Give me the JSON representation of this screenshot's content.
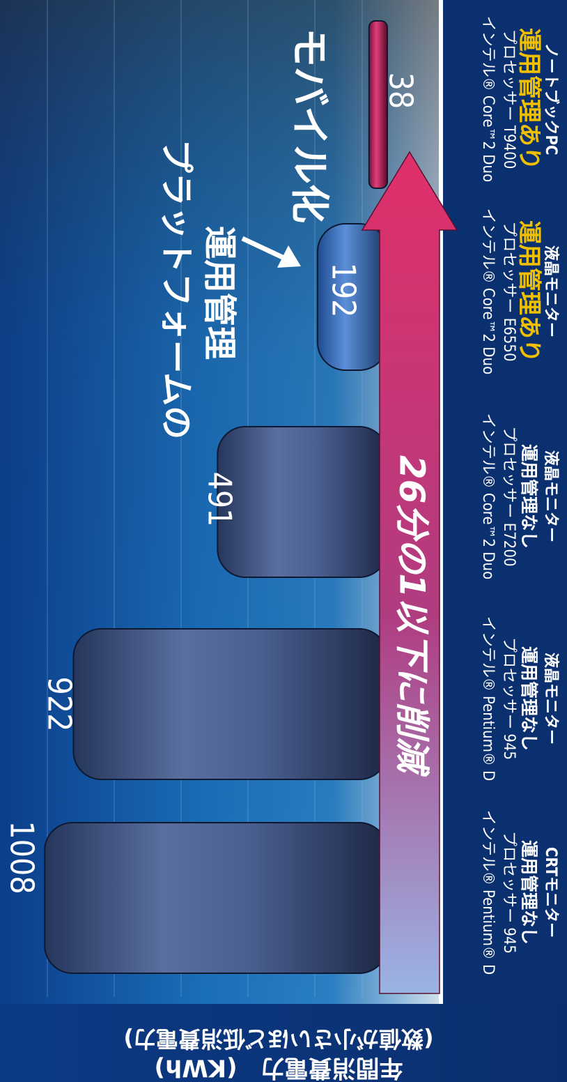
{
  "chart_data": {
    "type": "bar",
    "title": "",
    "ylabel": "年間消費電力　(KWh)",
    "ylabel_note": "(数値が小さいほど低消費電力)",
    "ylim": [
      0,
      1100
    ],
    "gridlines": true,
    "categories": [
      [
        "インテル® Pentium® D",
        "プロセッサー 945",
        "運用管理なし",
        "CRTモニター"
      ],
      [
        "インテル® Pentium® D",
        "プロセッサー 945",
        "運用管理なし",
        "液晶モニター"
      ],
      [
        "インテル® Core™2 Duo",
        "プロセッサー E7200",
        "運用管理なし",
        "液晶モニター"
      ],
      [
        "インテル® Core™2 Duo",
        "プロセッサー E6550",
        "運用管理あり",
        "液晶モニター"
      ],
      [
        "インテル® Core™2 Duo",
        "プロセッサー T9400",
        "運用管理あり",
        "ノートブックPC"
      ]
    ],
    "highlight_line": [
      false,
      false,
      false,
      true,
      true
    ],
    "values": [
      1008,
      922,
      491,
      192,
      38
    ],
    "value_labels": [
      "1008",
      "922",
      "491",
      "192",
      "38"
    ],
    "bar_colors": [
      "#4a5f8f",
      "#4a5f8f",
      "#4a5f8f",
      "#3f72c4",
      "#c0205e"
    ],
    "arrow_text": "26分の1以下に削減",
    "annotations": [
      "プラットフォームの",
      "運用管理",
      "モバイル化"
    ],
    "colors": {
      "highlight_text": "#f0c000",
      "arrow": "#d03070",
      "label_text": "#ffffff"
    }
  }
}
